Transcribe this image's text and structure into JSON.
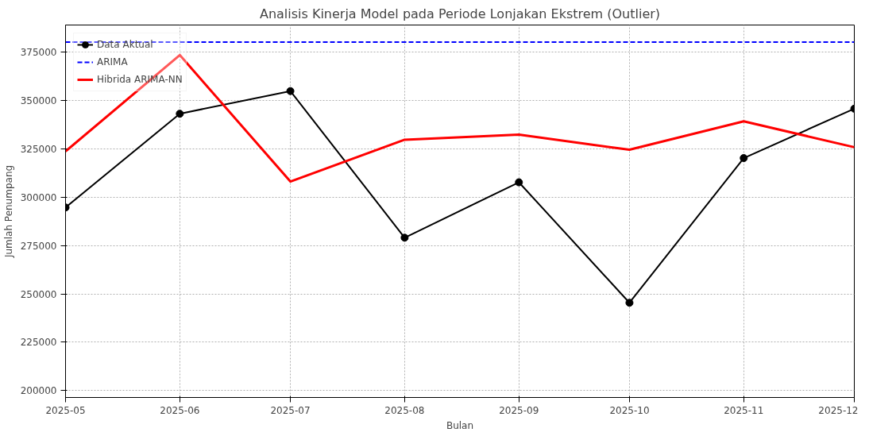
{
  "chart_data": {
    "type": "line",
    "title": "Analisis Kinerja Model pada Periode Lonjakan Ekstrem (Outlier)",
    "xlabel": "Bulan",
    "ylabel": "Jumlah Penumpang",
    "x": [
      "2025-05",
      "2025-06",
      "2025-07",
      "2025-08",
      "2025-09",
      "2025-10",
      "2025-11",
      "2025-12"
    ],
    "series": [
      {
        "name": "Data Aktual",
        "color": "#000000",
        "marker": "circle",
        "line_style": "solid",
        "values": [
          294600,
          343000,
          354700,
          279000,
          307600,
          245400,
          320100,
          345600
        ]
      },
      {
        "name": "ARIMA",
        "color": "#0000ff",
        "marker": "none",
        "line_style": "dashed",
        "values": [
          380000,
          380000,
          380000,
          380000,
          380000,
          380000,
          380000,
          380000
        ]
      },
      {
        "name": "Hibrida ARIMA-NN",
        "color": "#ff0000",
        "marker": "none",
        "line_style": "solid",
        "values": [
          323600,
          373300,
          308000,
          329600,
          332200,
          324400,
          339100,
          325700
        ]
      }
    ],
    "xlim": [
      "2025-05",
      "2025-12"
    ],
    "xticks": [
      "2025-05",
      "2025-06",
      "2025-07",
      "2025-08",
      "2025-09",
      "2025-10",
      "2025-11",
      "2025-12"
    ],
    "ylim": [
      196500,
      388800
    ],
    "yticks": [
      200000,
      225000,
      250000,
      275000,
      300000,
      325000,
      350000,
      375000
    ],
    "grid": true,
    "legend": "top left"
  }
}
